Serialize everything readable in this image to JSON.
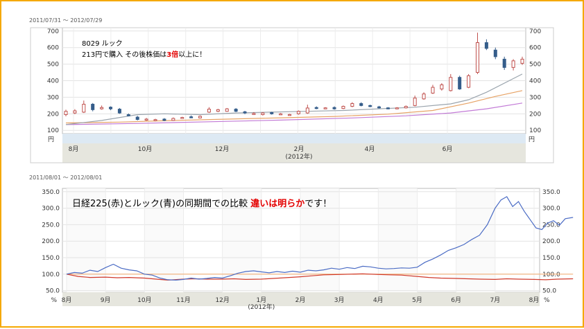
{
  "chart_data": [
    {
      "type": "candlestick",
      "date_range": "2011/07/31 ～ 2012/07/29",
      "y_ticks": [
        100,
        200,
        300,
        400,
        500,
        600,
        700
      ],
      "ylim": [
        80,
        720
      ],
      "unit_label": "円",
      "x_ticks": [
        "8月",
        "10月",
        "12月",
        "2月",
        "4月",
        "6月"
      ],
      "x_year_label": "(2012年)",
      "annotation_line1": "8029 ルック",
      "annotation_line2_parts": [
        "213円で購入 その後株価は",
        "3倍",
        "以上に！"
      ],
      "candles": [
        {
          "o": 195,
          "c": 215,
          "h": 225,
          "l": 185
        },
        {
          "o": 205,
          "c": 218,
          "h": 228,
          "l": 198
        },
        {
          "o": 210,
          "c": 258,
          "h": 280,
          "l": 205
        },
        {
          "o": 258,
          "c": 225,
          "h": 265,
          "l": 215
        },
        {
          "o": 230,
          "c": 238,
          "h": 250,
          "l": 225
        },
        {
          "o": 240,
          "c": 230,
          "h": 245,
          "l": 222
        },
        {
          "o": 228,
          "c": 205,
          "h": 235,
          "l": 200
        },
        {
          "o": 195,
          "c": 188,
          "h": 202,
          "l": 185
        },
        {
          "o": 180,
          "c": 166,
          "h": 188,
          "l": 160
        },
        {
          "o": 165,
          "c": 168,
          "h": 175,
          "l": 158
        },
        {
          "o": 160,
          "c": 165,
          "h": 170,
          "l": 155
        },
        {
          "o": 168,
          "c": 160,
          "h": 174,
          "l": 156
        },
        {
          "o": 160,
          "c": 172,
          "h": 178,
          "l": 157
        },
        {
          "o": 175,
          "c": 178,
          "h": 182,
          "l": 170
        },
        {
          "o": 182,
          "c": 180,
          "h": 190,
          "l": 176
        },
        {
          "o": 175,
          "c": 185,
          "h": 190,
          "l": 172
        },
        {
          "o": 210,
          "c": 228,
          "h": 240,
          "l": 205
        },
        {
          "o": 215,
          "c": 225,
          "h": 230,
          "l": 210
        },
        {
          "o": 215,
          "c": 230,
          "h": 235,
          "l": 212
        },
        {
          "o": 228,
          "c": 215,
          "h": 235,
          "l": 210
        },
        {
          "o": 212,
          "c": 205,
          "h": 218,
          "l": 198
        },
        {
          "o": 198,
          "c": 202,
          "h": 210,
          "l": 195
        },
        {
          "o": 195,
          "c": 205,
          "h": 210,
          "l": 190
        },
        {
          "o": 208,
          "c": 200,
          "h": 212,
          "l": 195
        },
        {
          "o": 198,
          "c": 200,
          "h": 205,
          "l": 195
        },
        {
          "o": 195,
          "c": 196,
          "h": 200,
          "l": 190
        },
        {
          "o": 200,
          "c": 215,
          "h": 220,
          "l": 195
        },
        {
          "o": 205,
          "c": 235,
          "h": 255,
          "l": 200
        },
        {
          "o": 238,
          "c": 232,
          "h": 245,
          "l": 228
        },
        {
          "o": 235,
          "c": 236,
          "h": 240,
          "l": 230
        },
        {
          "o": 238,
          "c": 230,
          "h": 245,
          "l": 225
        },
        {
          "o": 232,
          "c": 245,
          "h": 250,
          "l": 228
        },
        {
          "o": 245,
          "c": 262,
          "h": 270,
          "l": 240
        },
        {
          "o": 262,
          "c": 250,
          "h": 270,
          "l": 245
        },
        {
          "o": 250,
          "c": 245,
          "h": 255,
          "l": 240
        },
        {
          "o": 242,
          "c": 236,
          "h": 248,
          "l": 232
        },
        {
          "o": 236,
          "c": 232,
          "h": 240,
          "l": 228
        },
        {
          "o": 232,
          "c": 236,
          "h": 240,
          "l": 228
        },
        {
          "o": 236,
          "c": 245,
          "h": 250,
          "l": 232
        },
        {
          "o": 250,
          "c": 295,
          "h": 310,
          "l": 245
        },
        {
          "o": 290,
          "c": 320,
          "h": 330,
          "l": 285
        },
        {
          "o": 325,
          "c": 360,
          "h": 375,
          "l": 320
        },
        {
          "o": 350,
          "c": 375,
          "h": 385,
          "l": 340
        },
        {
          "o": 340,
          "c": 420,
          "h": 440,
          "l": 335
        },
        {
          "o": 420,
          "c": 350,
          "h": 430,
          "l": 345
        },
        {
          "o": 360,
          "c": 430,
          "h": 440,
          "l": 355
        },
        {
          "o": 450,
          "c": 630,
          "h": 690,
          "l": 440
        },
        {
          "o": 630,
          "c": 595,
          "h": 650,
          "l": 585
        },
        {
          "o": 585,
          "c": 545,
          "h": 600,
          "l": 530
        },
        {
          "o": 530,
          "c": 480,
          "h": 545,
          "l": 465
        },
        {
          "o": 480,
          "c": 520,
          "h": 530,
          "l": 462
        },
        {
          "o": 505,
          "c": 530,
          "h": 545,
          "l": 495
        }
      ],
      "ma_gray": [
        [
          0,
          135
        ],
        [
          4,
          160
        ],
        [
          8,
          195
        ],
        [
          11,
          200
        ],
        [
          15,
          195
        ],
        [
          19,
          205
        ],
        [
          23,
          210
        ],
        [
          27,
          215
        ],
        [
          31,
          220
        ],
        [
          35,
          230
        ],
        [
          39,
          240
        ],
        [
          43,
          260
        ],
        [
          45,
          285
        ],
        [
          47,
          330
        ],
        [
          51,
          440
        ]
      ],
      "ma_orange": [
        [
          0,
          145
        ],
        [
          6,
          150
        ],
        [
          12,
          160
        ],
        [
          18,
          168
        ],
        [
          24,
          176
        ],
        [
          30,
          184
        ],
        [
          36,
          198
        ],
        [
          41,
          220
        ],
        [
          45,
          265
        ],
        [
          48,
          305
        ],
        [
          51,
          340
        ]
      ],
      "ma_purple": [
        [
          0,
          135
        ],
        [
          8,
          142
        ],
        [
          16,
          152
        ],
        [
          24,
          162
        ],
        [
          32,
          175
        ],
        [
          38,
          188
        ],
        [
          43,
          205
        ],
        [
          47,
          230
        ],
        [
          51,
          265
        ]
      ]
    },
    {
      "type": "line",
      "date_range": "2011/08/01 ～ 2012/08/01",
      "y_ticks": [
        "50.0",
        "100.0",
        "150.0",
        "200.0",
        "250.0",
        "300.0",
        "350.0"
      ],
      "ylim": [
        45,
        360
      ],
      "unit_label": "%",
      "x_ticks": [
        "8月",
        "9月",
        "10月",
        "11月",
        "12月",
        "1月",
        "2月",
        "3月",
        "4月",
        "5月",
        "6月",
        "7月",
        "8月"
      ],
      "x_year_label": "(2012年)",
      "annotation_parts": [
        "日経225(赤)とルック(青)の同期間での比較  ",
        "違いは明らか",
        "です！"
      ],
      "series": [
        {
          "color": "#4a6bc4",
          "values": [
            [
              0,
              100
            ],
            [
              0.2,
              105
            ],
            [
              0.4,
              103
            ],
            [
              0.6,
              112
            ],
            [
              0.8,
              108
            ],
            [
              1.0,
              120
            ],
            [
              1.2,
              130
            ],
            [
              1.4,
              118
            ],
            [
              1.6,
              113
            ],
            [
              1.8,
              110
            ],
            [
              2.0,
              100
            ],
            [
              2.2,
              97
            ],
            [
              2.4,
              88
            ],
            [
              2.6,
              83
            ],
            [
              2.8,
              82
            ],
            [
              3.0,
              84
            ],
            [
              3.2,
              88
            ],
            [
              3.4,
              85
            ],
            [
              3.6,
              87
            ],
            [
              3.8,
              90
            ],
            [
              4.0,
              88
            ],
            [
              4.2,
              95
            ],
            [
              4.4,
              103
            ],
            [
              4.6,
              108
            ],
            [
              4.8,
              110
            ],
            [
              5.0,
              107
            ],
            [
              5.2,
              104
            ],
            [
              5.4,
              108
            ],
            [
              5.6,
              105
            ],
            [
              5.8,
              109
            ],
            [
              6.0,
              106
            ],
            [
              6.2,
              112
            ],
            [
              6.4,
              110
            ],
            [
              6.6,
              113
            ],
            [
              6.8,
              118
            ],
            [
              7.0,
              115
            ],
            [
              7.2,
              120
            ],
            [
              7.4,
              117
            ],
            [
              7.6,
              124
            ],
            [
              7.8,
              122
            ],
            [
              8.0,
              118
            ],
            [
              8.2,
              116
            ],
            [
              8.4,
              117
            ],
            [
              8.6,
              119
            ],
            [
              8.8,
              118
            ],
            [
              9.0,
              121
            ],
            [
              9.2,
              136
            ],
            [
              9.4,
              146
            ],
            [
              9.6,
              158
            ],
            [
              9.8,
              172
            ],
            [
              10.0,
              180
            ],
            [
              10.2,
              190
            ],
            [
              10.4,
              205
            ],
            [
              10.6,
              218
            ],
            [
              10.8,
              250
            ],
            [
              11.0,
              300
            ],
            [
              11.15,
              325
            ],
            [
              11.3,
              335
            ],
            [
              11.45,
              305
            ],
            [
              11.6,
              320
            ],
            [
              11.75,
              290
            ],
            [
              11.9,
              265
            ],
            [
              12.05,
              240
            ],
            [
              12.2,
              235
            ],
            [
              12.35,
              255
            ],
            [
              12.5,
              262
            ],
            [
              12.65,
              248
            ],
            [
              12.8,
              268
            ],
            [
              13.0,
              272
            ]
          ]
        },
        {
          "color": "#d0392b",
          "values": [
            [
              0,
              100
            ],
            [
              0.3,
              93
            ],
            [
              0.6,
              90
            ],
            [
              1.0,
              91
            ],
            [
              1.3,
              89
            ],
            [
              1.6,
              90
            ],
            [
              2.0,
              88
            ],
            [
              2.3,
              85
            ],
            [
              2.6,
              82
            ],
            [
              3.0,
              85
            ],
            [
              3.3,
              86
            ],
            [
              3.6,
              85
            ],
            [
              4.0,
              85
            ],
            [
              4.3,
              86
            ],
            [
              4.6,
              84
            ],
            [
              5.0,
              85
            ],
            [
              5.3,
              87
            ],
            [
              5.6,
              89
            ],
            [
              6.0,
              92
            ],
            [
              6.3,
              95
            ],
            [
              6.6,
              98
            ],
            [
              7.0,
              99
            ],
            [
              7.3,
              100
            ],
            [
              7.6,
              101
            ],
            [
              8.0,
              99
            ],
            [
              8.3,
              98
            ],
            [
              8.6,
              97
            ],
            [
              9.0,
              93
            ],
            [
              9.3,
              90
            ],
            [
              9.6,
              88
            ],
            [
              10.0,
              87
            ],
            [
              10.3,
              86
            ],
            [
              10.6,
              85
            ],
            [
              11.0,
              84
            ],
            [
              11.3,
              86
            ],
            [
              11.6,
              85
            ],
            [
              12.0,
              84
            ],
            [
              12.3,
              83
            ],
            [
              12.6,
              85
            ],
            [
              13.0,
              86
            ]
          ]
        },
        {
          "color": "#f3b079",
          "values": [
            [
              0,
              100
            ],
            [
              13,
              100
            ]
          ]
        }
      ]
    }
  ]
}
